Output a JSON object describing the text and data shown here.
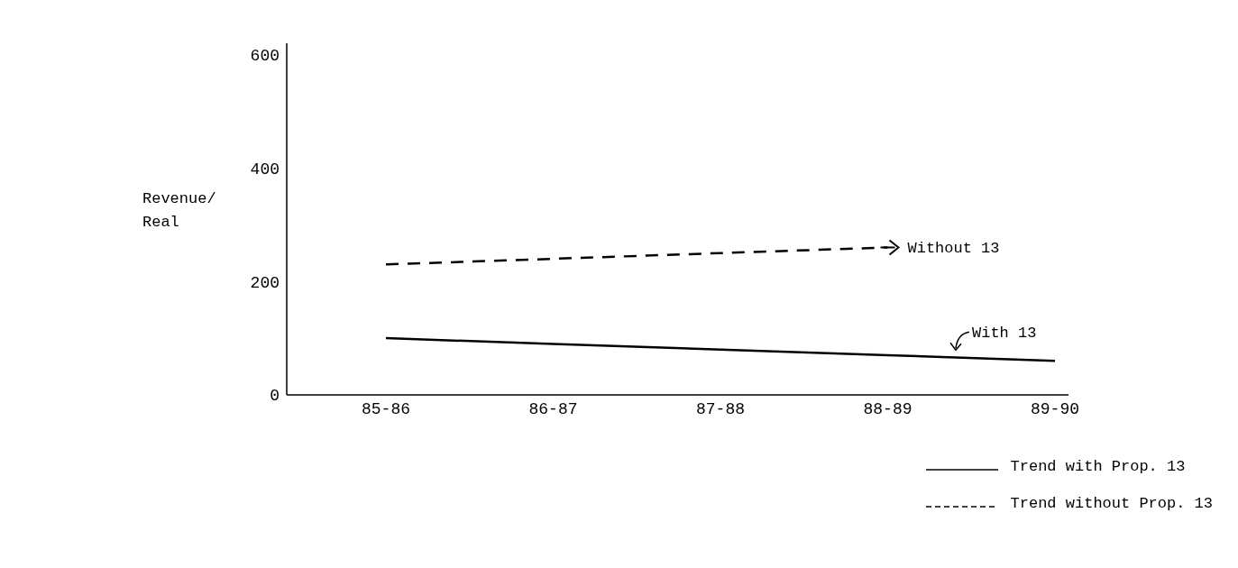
{
  "chart_data": {
    "type": "line",
    "ylabel": "Revenue/\nReal",
    "categories": [
      "85-86",
      "86-87",
      "87-88",
      "88-89",
      "89-90"
    ],
    "series": [
      {
        "name": "Trend with Prop. 13",
        "color": "#000000",
        "line_style": "solid",
        "values": [
          100,
          90,
          80,
          70,
          60
        ]
      },
      {
        "name": "Trend without Prop. 13",
        "color": "#000000",
        "line_style": "dashed",
        "values": [
          230,
          240,
          250,
          260,
          null
        ]
      }
    ],
    "annotations": [
      {
        "text": "Without 13",
        "x": "88-89",
        "y": 260
      },
      {
        "text": "With 13",
        "x": "89-90",
        "y": 60
      }
    ],
    "ylim": [
      0,
      620
    ],
    "yticks": [
      0,
      200,
      400,
      600
    ],
    "grid": false,
    "legend": "bottom right",
    "marker": "none"
  }
}
